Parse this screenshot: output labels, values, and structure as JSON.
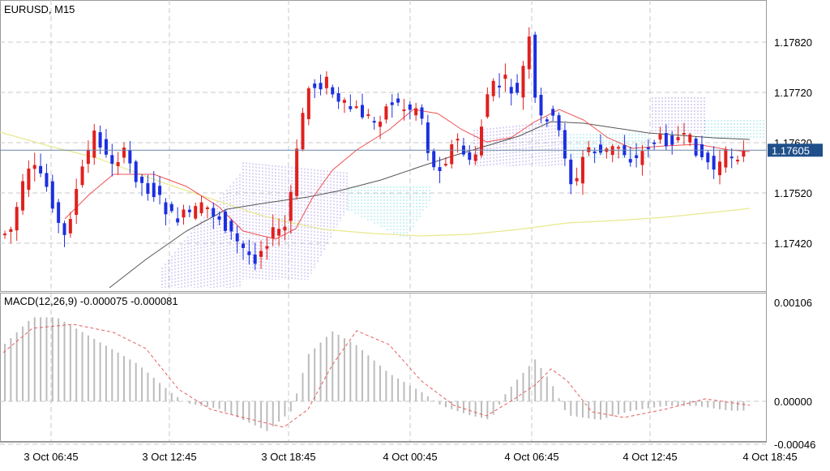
{
  "header": {
    "symbol_label": "EURUSD, M15",
    "macd_label": "MACD(12,26,9) -0.000075 -0.000081"
  },
  "colors": {
    "background": "#ffffff",
    "grid": "#c8c8c8",
    "bull_candle": "#e0201e",
    "bear_candle": "#1c2fe0",
    "ma_fast": "#f05050",
    "ma_slow": "#555555",
    "ma_long": "#e8e890",
    "ichimoku_cloud_bear": "#9a80e6",
    "ichimoku_cloud_bull": "#70d8e0",
    "price_line": "#6a85a8",
    "price_tag_bg": "#1e4f8a",
    "price_tag_text": "#ffffff",
    "macd_hist": "#bcbcbc",
    "macd_signal": "#e66060"
  },
  "price_tag": "1.17605",
  "chart_data": [
    {
      "type": "candlestick",
      "title": "EURUSD, M15",
      "y_tick_labels": [
        "1.17820",
        "1.17720",
        "1.17620",
        "1.17520",
        "1.17420"
      ],
      "y_ticks": [
        1.1782,
        1.1772,
        1.1762,
        1.1752,
        1.1742
      ],
      "ylim": [
        1.1735,
        1.1787
      ],
      "x_tick_labels": [
        "3 Oct 06:45",
        "3 Oct 12:45",
        "3 Oct 18:45",
        "4 Oct 00:45",
        "4 Oct 06:45",
        "4 Oct 12:45",
        "4 Oct 18:45"
      ],
      "current_price": 1.17605,
      "grid": true,
      "overlays": [
        "moving average (red)",
        "moving average (dark gray)",
        "moving average (yellow)",
        "Ichimoku cloud"
      ],
      "bull_color": "#e0201e",
      "bear_color": "#1c2fe0"
    },
    {
      "type": "line",
      "title": "MACD(12,26,9) -0.000075 -0.000081",
      "y_tick_labels": [
        "0.00106",
        "0.00000",
        "-0.00046"
      ],
      "y_ticks": [
        0.00106,
        0.0,
        -0.00046
      ],
      "ylim": [
        -0.00046,
        0.00106
      ],
      "main": -7.5e-05,
      "signal": -8.1e-05,
      "grid": true
    }
  ]
}
